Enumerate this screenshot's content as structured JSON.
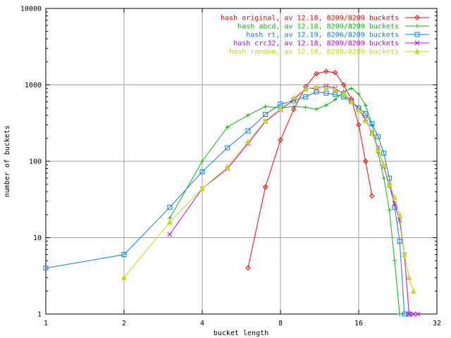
{
  "chart_data": {
    "type": "line",
    "xlabel": "bucket length",
    "ylabel": "number of buckets",
    "xscale": "log2",
    "yscale": "log10",
    "xlim": [
      1,
      32
    ],
    "ylim": [
      1,
      10000
    ],
    "grid": true,
    "legend_position": "top-right",
    "x_ticks": [
      {
        "value": 1,
        "label": "1"
      },
      {
        "value": 2,
        "label": "2"
      },
      {
        "value": 4,
        "label": "4"
      },
      {
        "value": 8,
        "label": "8"
      },
      {
        "value": 16,
        "label": "16"
      },
      {
        "value": 32,
        "label": "32"
      }
    ],
    "y_ticks": [
      {
        "value": 1,
        "label": "1"
      },
      {
        "value": 10,
        "label": "10"
      },
      {
        "value": 100,
        "label": "100"
      },
      {
        "value": 1000,
        "label": "1000"
      },
      {
        "value": 10000,
        "label": "10000"
      }
    ],
    "series": [
      {
        "name": "hash original, av 12.18, 8209/8209 buckets",
        "color": "#ff0000",
        "marker": "diamond",
        "points": [
          [
            6,
            4
          ],
          [
            7,
            46
          ],
          [
            8,
            190
          ],
          [
            9,
            480
          ],
          [
            10,
            950
          ],
          [
            11,
            1400
          ],
          [
            12,
            1500
          ],
          [
            13,
            1450
          ],
          [
            14,
            1000
          ],
          [
            15,
            650
          ],
          [
            16,
            300
          ],
          [
            17,
            100
          ],
          [
            18,
            35
          ]
        ]
      },
      {
        "name": "hash abcd, av 12.18, 8209/8209 buckets",
        "color": "#00c000",
        "marker": "plus",
        "points": [
          [
            3,
            18
          ],
          [
            4,
            100
          ],
          [
            5,
            280
          ],
          [
            6,
            400
          ],
          [
            7,
            520
          ],
          [
            8,
            500
          ],
          [
            9,
            520
          ],
          [
            10,
            510
          ],
          [
            11,
            480
          ],
          [
            12,
            540
          ],
          [
            13,
            640
          ],
          [
            14,
            820
          ],
          [
            15,
            900
          ],
          [
            16,
            760
          ],
          [
            17,
            540
          ],
          [
            18,
            300
          ],
          [
            19,
            130
          ],
          [
            20,
            60
          ],
          [
            21,
            23
          ],
          [
            22,
            5
          ],
          [
            23,
            1
          ]
        ]
      },
      {
        "name": "hash rt, av 12.19, 8206/8209 buckets",
        "color": "#0080ff",
        "marker": "square",
        "points": [
          [
            1,
            4
          ],
          [
            2,
            6
          ],
          [
            3,
            25
          ],
          [
            4,
            73
          ],
          [
            5,
            150
          ],
          [
            6,
            250
          ],
          [
            7,
            410
          ],
          [
            8,
            560
          ],
          [
            9,
            620
          ],
          [
            10,
            700
          ],
          [
            11,
            810
          ],
          [
            12,
            780
          ],
          [
            13,
            750
          ],
          [
            14,
            700
          ],
          [
            15,
            600
          ],
          [
            16,
            500
          ],
          [
            17,
            420
          ],
          [
            18,
            310
          ],
          [
            19,
            210
          ],
          [
            20,
            128
          ],
          [
            21,
            60
          ],
          [
            22,
            25
          ],
          [
            23,
            9
          ],
          [
            24,
            1
          ],
          [
            25,
            1
          ]
        ]
      },
      {
        "name": "hash crc32, av 12.18, 8209/8209 buckets",
        "color": "#c000ff",
        "marker": "cross",
        "points": [
          [
            3,
            11
          ],
          [
            4,
            44
          ],
          [
            5,
            80
          ],
          [
            6,
            170
          ],
          [
            7,
            330
          ],
          [
            8,
            470
          ],
          [
            9,
            640
          ],
          [
            10,
            900
          ],
          [
            11,
            900
          ],
          [
            12,
            970
          ],
          [
            13,
            900
          ],
          [
            14,
            760
          ],
          [
            15,
            620
          ],
          [
            16,
            480
          ],
          [
            17,
            360
          ],
          [
            18,
            230
          ],
          [
            19,
            150
          ],
          [
            20,
            85
          ],
          [
            21,
            48
          ],
          [
            22,
            28
          ],
          [
            23,
            17
          ],
          [
            24,
            6
          ],
          [
            25,
            1
          ],
          [
            26,
            1
          ],
          [
            27,
            1
          ]
        ]
      },
      {
        "name": "hash random, av 12.18, 8209/8209 buckets",
        "color": "#c0e000",
        "marker": "triangle",
        "points": [
          [
            2,
            3
          ],
          [
            3,
            16
          ],
          [
            4,
            44
          ],
          [
            5,
            84
          ],
          [
            6,
            180
          ],
          [
            7,
            340
          ],
          [
            8,
            490
          ],
          [
            9,
            680
          ],
          [
            10,
            880
          ],
          [
            11,
            950
          ],
          [
            12,
            920
          ],
          [
            13,
            870
          ],
          [
            14,
            760
          ],
          [
            15,
            600
          ],
          [
            16,
            470
          ],
          [
            17,
            340
          ],
          [
            18,
            240
          ],
          [
            19,
            140
          ],
          [
            20,
            90
          ],
          [
            21,
            50
          ],
          [
            22,
            34
          ],
          [
            23,
            20
          ],
          [
            24,
            6
          ],
          [
            25,
            3
          ],
          [
            26,
            2
          ]
        ]
      }
    ]
  }
}
